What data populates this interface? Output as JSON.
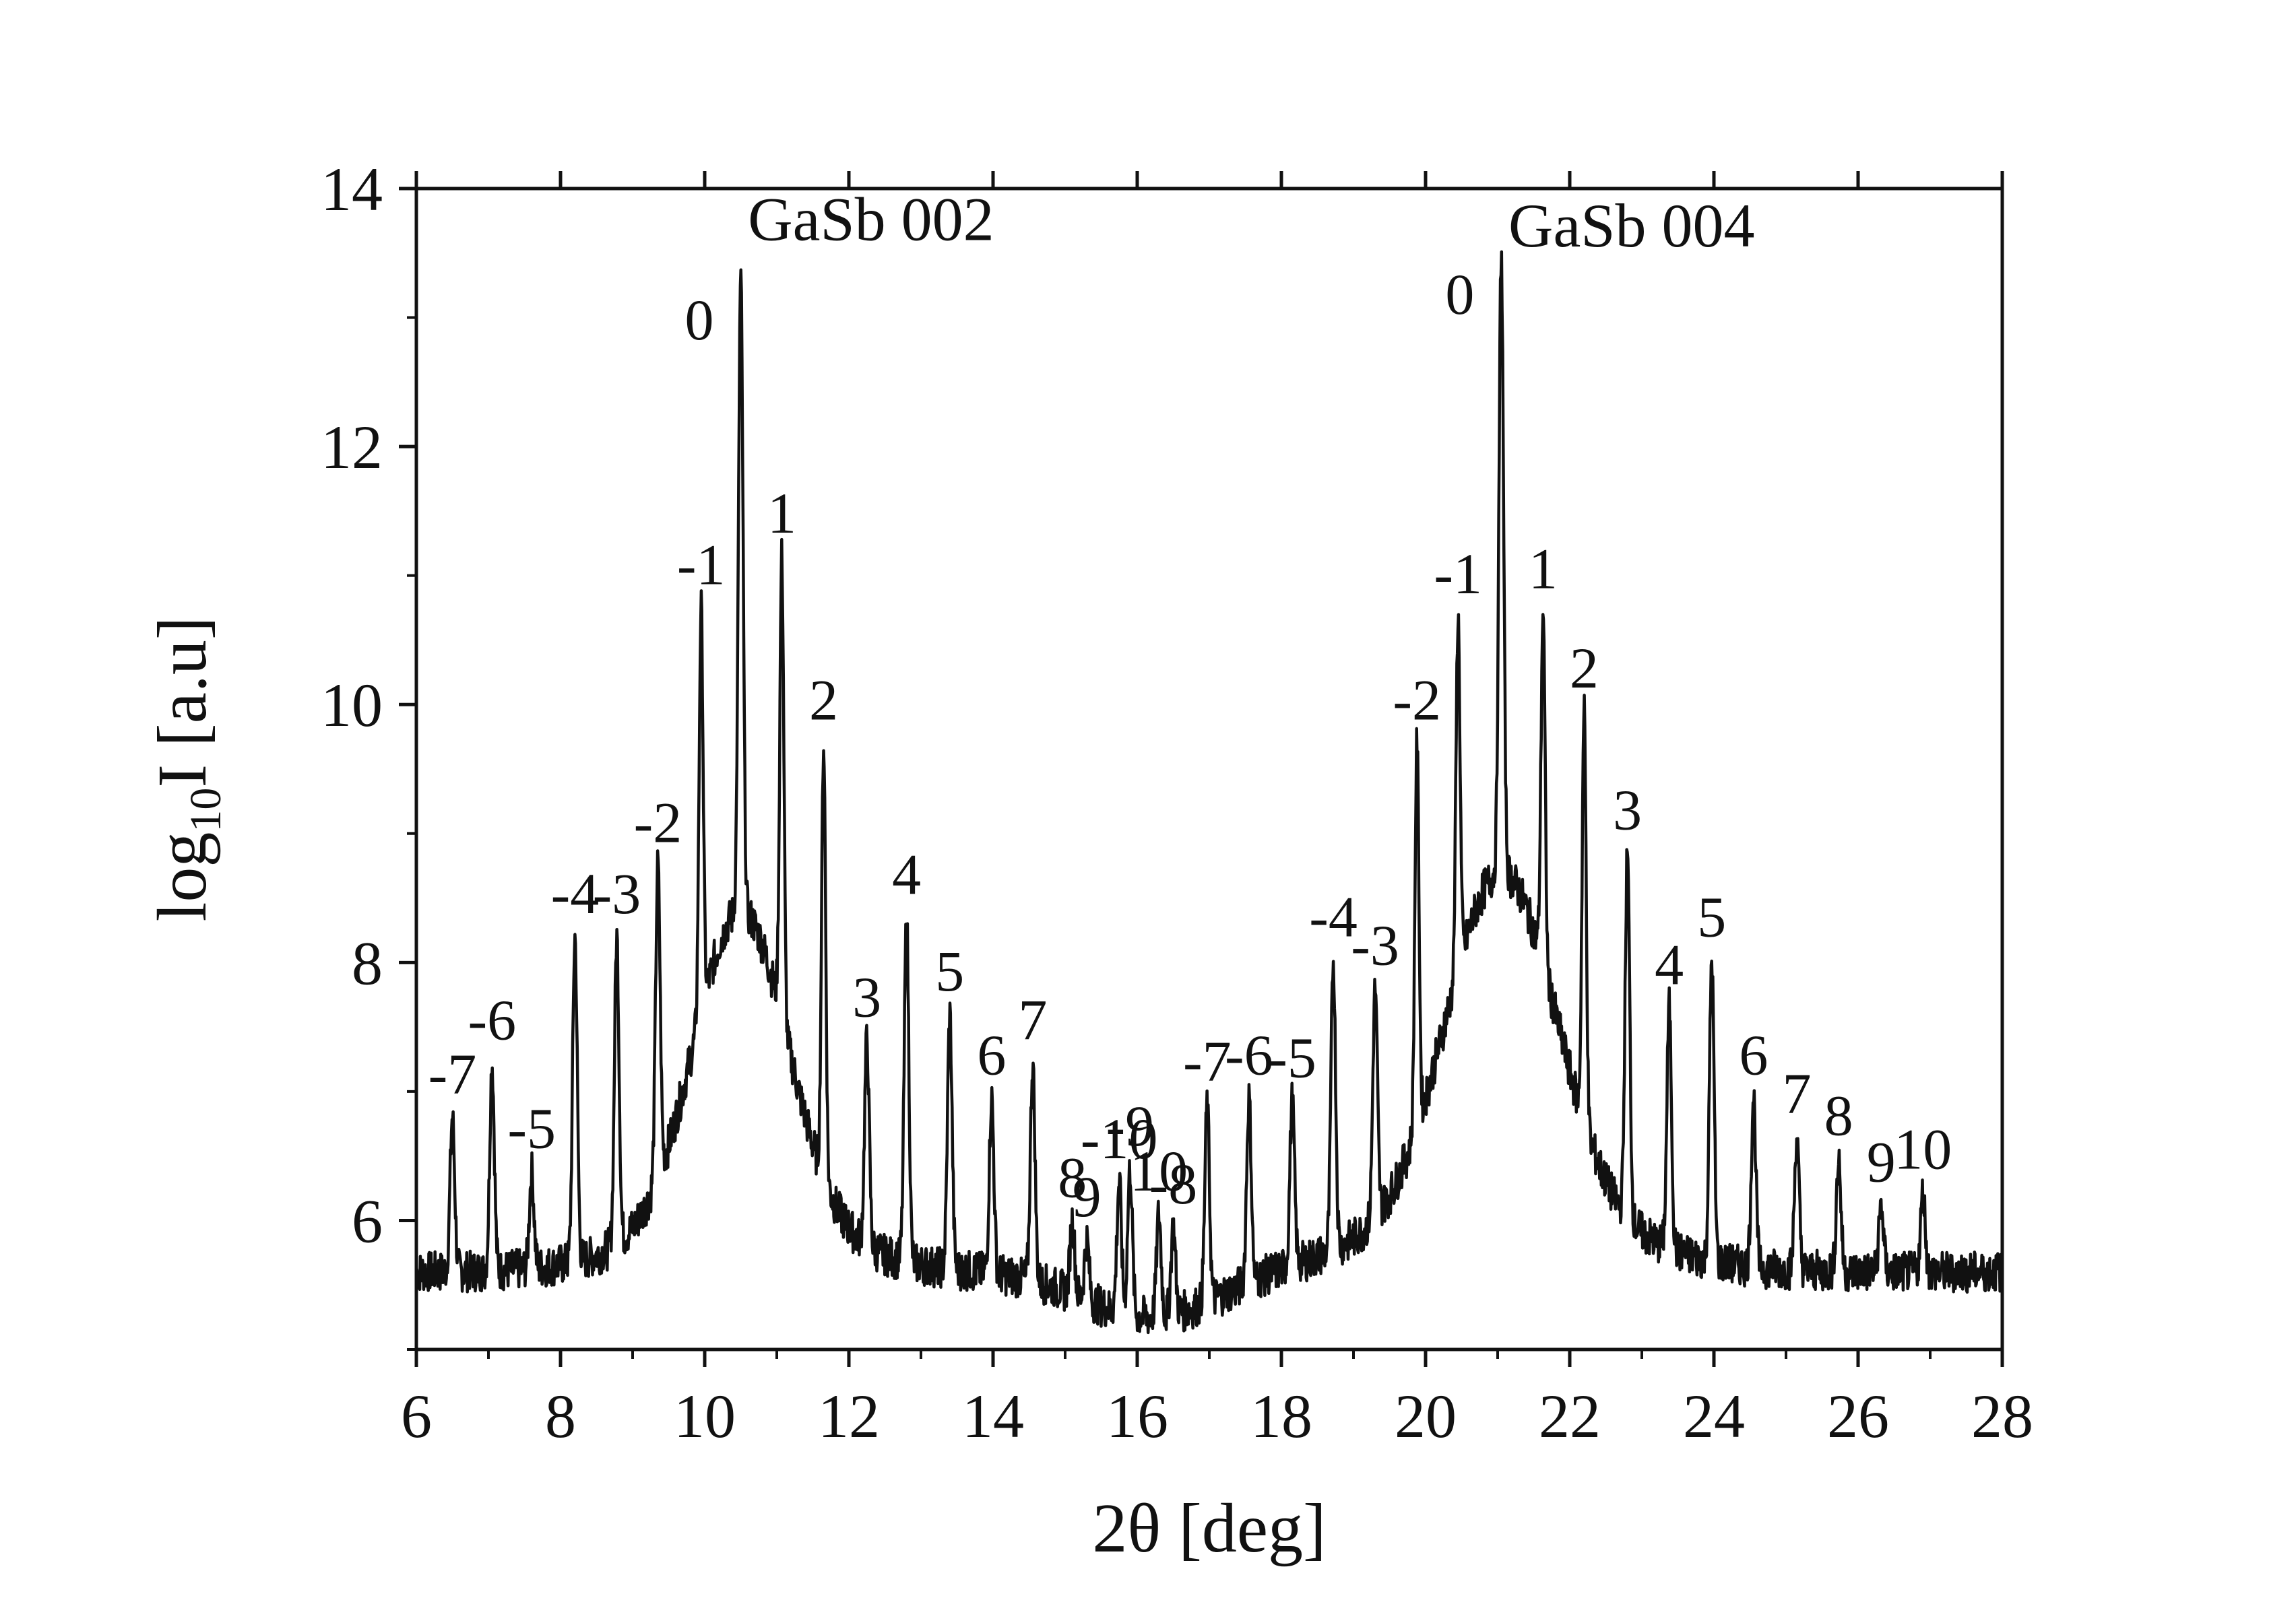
{
  "chart_data": {
    "type": "line",
    "title": "",
    "xlabel": "2θ [deg]",
    "ylabel_main": "log",
    "ylabel_sub": "10",
    "ylabel_rest": "I [a.u]",
    "xlim": [
      6,
      28
    ],
    "ylim": [
      5,
      14
    ],
    "xticks": [
      6,
      8,
      10,
      12,
      14,
      16,
      18,
      20,
      22,
      24,
      26,
      28
    ],
    "yticks": [
      6,
      8,
      10,
      12,
      14
    ],
    "baseline": 5.6,
    "series": [
      {
        "name": "XRD scan",
        "peaks": [
          {
            "x": 6.5,
            "y": 6.8,
            "label": "-7"
          },
          {
            "x": 7.05,
            "y": 7.22,
            "label": "-6"
          },
          {
            "x": 7.6,
            "y": 6.38,
            "label": "-5"
          },
          {
            "x": 8.2,
            "y": 8.2,
            "label": "-4"
          },
          {
            "x": 8.78,
            "y": 8.2,
            "label": "-3"
          },
          {
            "x": 9.35,
            "y": 8.75,
            "label": "-2"
          },
          {
            "x": 9.95,
            "y": 10.75,
            "label": "-1"
          },
          {
            "x": 10.5,
            "y": 13.3,
            "label": "0"
          },
          {
            "x": 11.07,
            "y": 11.15,
            "label": "1"
          },
          {
            "x": 11.65,
            "y": 9.7,
            "label": "2"
          },
          {
            "x": 12.25,
            "y": 7.4,
            "label": "3"
          },
          {
            "x": 12.8,
            "y": 8.35,
            "label": "4"
          },
          {
            "x": 13.4,
            "y": 7.6,
            "label": "5"
          },
          {
            "x": 13.98,
            "y": 6.95,
            "label": "6"
          },
          {
            "x": 14.55,
            "y": 7.22,
            "label": "7"
          },
          {
            "x": 15.1,
            "y": 6.0,
            "label": "8"
          },
          {
            "x": 15.3,
            "y": 5.85,
            "label": "9"
          },
          {
            "x": 15.75,
            "y": 6.3,
            "label": "-10"
          },
          {
            "x": 15.9,
            "y": 6.4,
            "label": "-9"
          },
          {
            "x": 16.3,
            "y": 6.05,
            "label": "10"
          },
          {
            "x": 16.5,
            "y": 5.95,
            "label": "-8"
          },
          {
            "x": 16.97,
            "y": 6.9,
            "label": "-7"
          },
          {
            "x": 17.55,
            "y": 6.95,
            "label": "-6"
          },
          {
            "x": 18.15,
            "y": 6.93,
            "label": "-5"
          },
          {
            "x": 18.72,
            "y": 8.02,
            "label": "-4"
          },
          {
            "x": 19.3,
            "y": 7.8,
            "label": "-3"
          },
          {
            "x": 19.88,
            "y": 9.7,
            "label": "-2"
          },
          {
            "x": 20.45,
            "y": 10.68,
            "label": "-1"
          },
          {
            "x": 21.05,
            "y": 13.5,
            "label": "0"
          },
          {
            "x": 21.63,
            "y": 10.72,
            "label": "1"
          },
          {
            "x": 22.2,
            "y": 9.95,
            "label": "2"
          },
          {
            "x": 22.8,
            "y": 8.85,
            "label": "3"
          },
          {
            "x": 23.38,
            "y": 7.65,
            "label": "4"
          },
          {
            "x": 23.97,
            "y": 8.02,
            "label": "5"
          },
          {
            "x": 24.55,
            "y": 6.95,
            "label": "6"
          },
          {
            "x": 25.15,
            "y": 6.65,
            "label": "7"
          },
          {
            "x": 25.73,
            "y": 6.48,
            "label": "8"
          },
          {
            "x": 26.32,
            "y": 6.12,
            "label": "9"
          },
          {
            "x": 26.9,
            "y": 6.22,
            "label": "10"
          }
        ]
      }
    ],
    "annotations": [
      {
        "text": "GaSb 002",
        "x": 10.6,
        "y": 13.6
      },
      {
        "text": "GaSb 004",
        "x": 21.15,
        "y": 13.55
      }
    ]
  }
}
